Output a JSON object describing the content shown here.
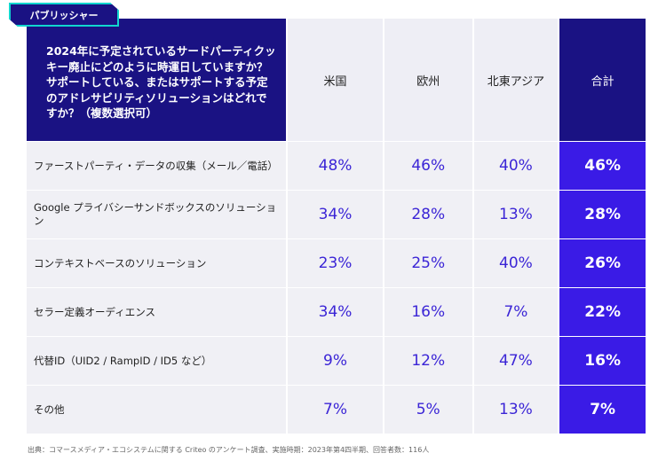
{
  "tag": "パブリッシャー",
  "header": {
    "question": "2024年に予定されているサードパーティクッキー廃止にどのように時運日していますか？ サポートしている、またはサポートする予定のアドレサビリティソリューションはどれですか？（複数選択可）",
    "cols": [
      "米国",
      "欧州",
      "北東アジア",
      "合計"
    ]
  },
  "rows": [
    {
      "label": "ファーストパーティ・データの収集（メール／電話）",
      "values": [
        "48%",
        "46%",
        "40%",
        "46%"
      ]
    },
    {
      "label": "Google プライバシーサンドボックスのソリューション",
      "values": [
        "34%",
        "28%",
        "13%",
        "28%"
      ]
    },
    {
      "label": "コンテキストベースのソリューション",
      "values": [
        "23%",
        "25%",
        "40%",
        "26%"
      ]
    },
    {
      "label": "セラー定義オーディエンス",
      "values": [
        "34%",
        "16%",
        "7%",
        "22%"
      ]
    },
    {
      "label": "代替ID（UID2 / RampID / ID5 など）",
      "values": [
        "9%",
        "12%",
        "47%",
        "16%"
      ]
    },
    {
      "label": "その他",
      "values": [
        "7%",
        "5%",
        "13%",
        "7%"
      ]
    }
  ],
  "footnote": "出典：コマースメディア・エコシステムに関する Criteo のアンケート調査、実施時期：2023年第4四半期、回答者数：116人",
  "colors": {
    "navy": "#1a1283",
    "accent": "#3a1be6",
    "value_text": "#3b25d6",
    "teal": "#11d6cf",
    "row_bg": "#f0f0f5"
  }
}
